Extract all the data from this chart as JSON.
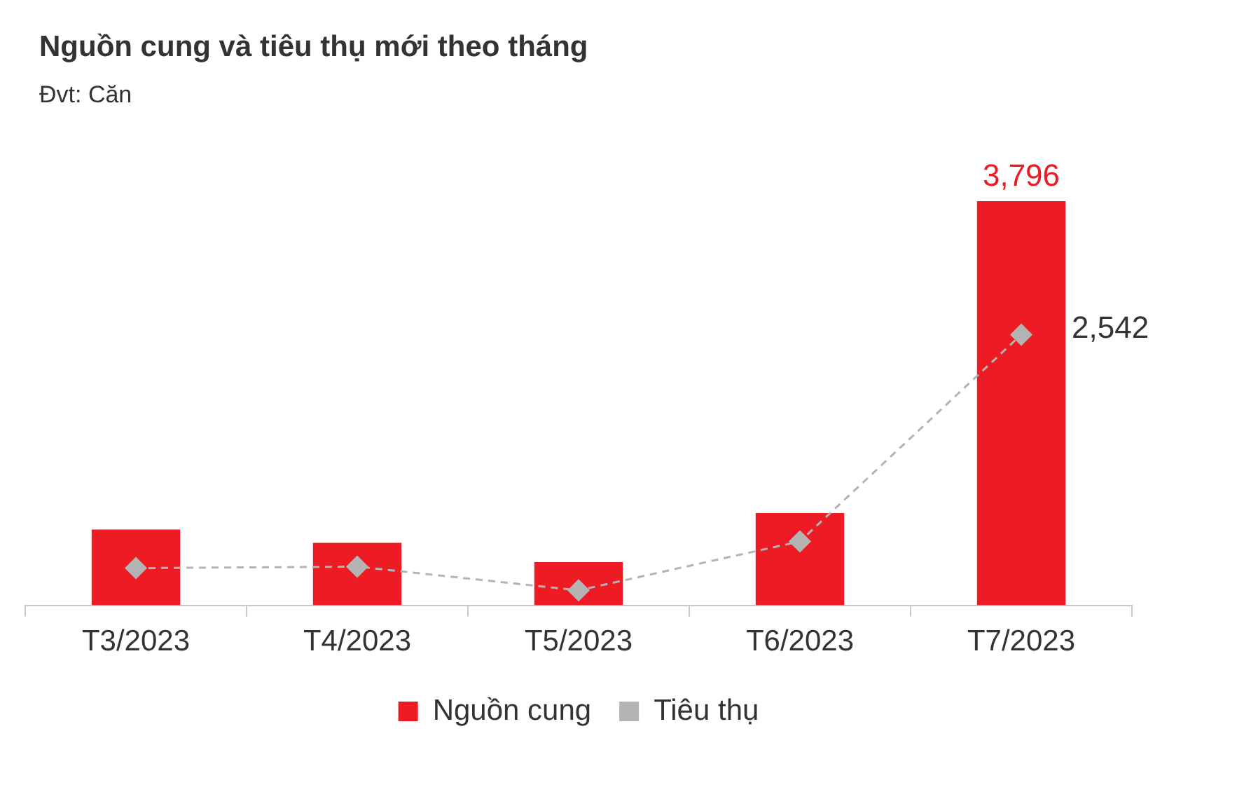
{
  "chart_data": {
    "type": "bar",
    "title": "Nguồn cung và tiêu thụ mới theo tháng",
    "subtitle": "Đvt: Căn",
    "categories": [
      "T3/2023",
      "T4/2023",
      "T5/2023",
      "T6/2023",
      "T7/2023"
    ],
    "series": [
      {
        "name": "Nguồn cung",
        "color": "#ed1c24",
        "values": [
          712,
          586,
          405,
          866,
          3796
        ],
        "value_labels": [
          null,
          null,
          null,
          null,
          "3,796"
        ]
      },
      {
        "name": "Tiêu thụ",
        "type": "line",
        "color": "#b4b4b4",
        "values": [
          349,
          363,
          140,
          600,
          2542
        ],
        "value_labels": [
          null,
          null,
          null,
          null,
          "2,542"
        ],
        "marker": "diamond",
        "line_style": "dashed"
      }
    ],
    "grid": false,
    "legend": "bottom"
  }
}
